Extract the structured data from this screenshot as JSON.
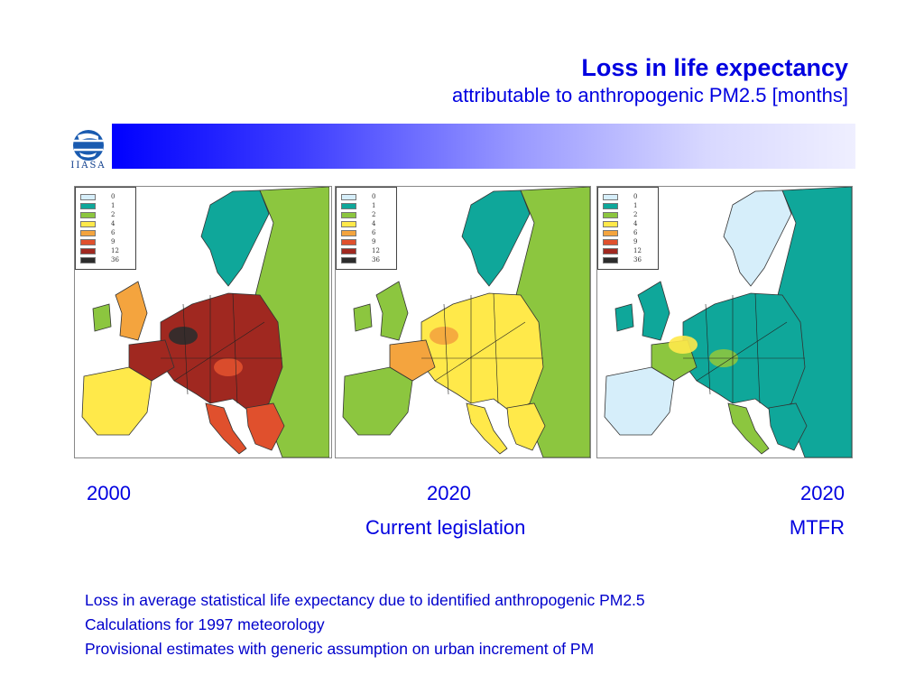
{
  "header": {
    "title": "Loss in life expectancy",
    "subtitle": "attributable to anthropogenic PM2.5 [months]"
  },
  "logo": {
    "text": "IIASA",
    "icon": "iiasa-globe-icon"
  },
  "legend": {
    "levels": [
      "0",
      "1",
      "2",
      "4",
      "6",
      "9",
      "12",
      "36"
    ],
    "colors": [
      "#d6eefa",
      "#0fa79a",
      "#8cc63f",
      "#ffe94a",
      "#f4a43e",
      "#e0502d",
      "#a02820",
      "#2c2c2c"
    ]
  },
  "maps": [
    {
      "year": "2000",
      "label": "",
      "scenario_level": "high"
    },
    {
      "year": "2020",
      "label": "Current legislation",
      "scenario_level": "medium"
    },
    {
      "year": "2020",
      "label": "MTFR",
      "scenario_level": "low"
    }
  ],
  "notes": [
    "Loss in average statistical life expectancy due to identified anthropogenic PM2.5",
    "Calculations for 1997 meteorology",
    "Provisional estimates with generic assumption on urban increment of PM"
  ],
  "colors": {
    "title": "#0000e0",
    "accent": "#0000ff"
  }
}
